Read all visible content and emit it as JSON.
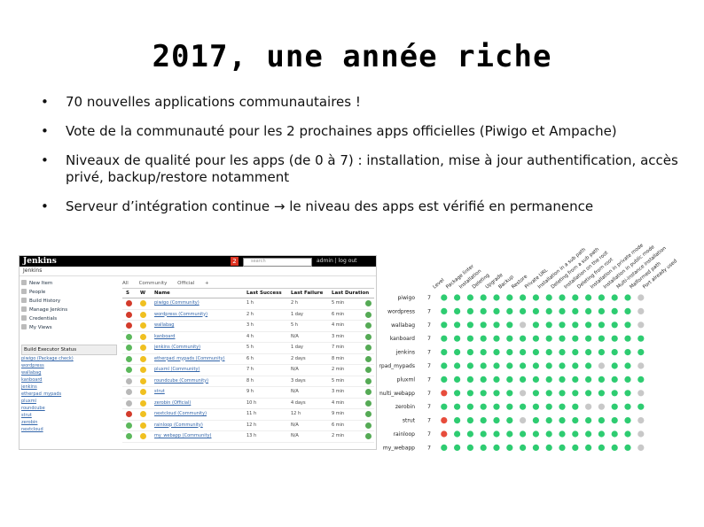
{
  "slide": {
    "title": "2017, une année riche",
    "bullets": [
      "70 nouvelles applications communautaires !",
      "Vote de la communauté pour les 2 prochaines apps officielles (Piwigo et Ampache)",
      "Niveaux de qualité pour les apps (de 0 à 7) : installation, mise à jour authentification, accès privé, backup/restore notamment",
      "Serveur d’intégration continue → le niveau des apps est vérifié en permanence"
    ],
    "bullet_symbol": "•"
  },
  "jenkins": {
    "logo": "Jenkins",
    "badge": "2",
    "search_placeholder": "search",
    "user_links": "admin | log out",
    "breadcrumb": "Jenkins",
    "sidebar_items": [
      "New Item",
      "People",
      "Build History",
      "Manage Jenkins",
      "Credentials",
      "My Views"
    ],
    "executor_header": "Build Executor Status",
    "executors": [
      "piwigo (Package check)",
      "wordpress",
      "wallabag",
      "kanboard",
      "jenkins",
      "etherpad_mypads",
      "pluxml",
      "roundcube",
      "strut",
      "zerobin",
      "nextcloud"
    ],
    "tabs": [
      "All",
      "Community",
      "Official",
      "+"
    ],
    "columns": [
      "S",
      "W",
      "Name",
      "Last Success",
      "Last Failure",
      "Last Duration"
    ],
    "rows": [
      {
        "status": "red",
        "name": "piwigo (Community)",
        "success": "1 h",
        "failure": "2 h",
        "duration": "5 min"
      },
      {
        "status": "red",
        "name": "wordpress (Community)",
        "success": "2 h",
        "failure": "1 day",
        "duration": "6 min"
      },
      {
        "status": "red",
        "name": "wallabag",
        "success": "3 h",
        "failure": "5 h",
        "duration": "4 min"
      },
      {
        "status": "green",
        "name": "kanboard",
        "success": "4 h",
        "failure": "N/A",
        "duration": "3 min"
      },
      {
        "status": "green",
        "name": "jenkins (Community)",
        "success": "5 h",
        "failure": "1 day",
        "duration": "7 min"
      },
      {
        "status": "green",
        "name": "etherpad_mypads (Community)",
        "success": "6 h",
        "failure": "2 days",
        "duration": "8 min"
      },
      {
        "status": "green",
        "name": "pluxml (Community)",
        "success": "7 h",
        "failure": "N/A",
        "duration": "2 min"
      },
      {
        "status": "gray",
        "name": "roundcube (Community)",
        "success": "8 h",
        "failure": "3 days",
        "duration": "5 min"
      },
      {
        "status": "gray",
        "name": "strut",
        "success": "9 h",
        "failure": "N/A",
        "duration": "3 min"
      },
      {
        "status": "gray",
        "name": "zerobin (Official)",
        "success": "10 h",
        "failure": "4 days",
        "duration": "4 min"
      },
      {
        "status": "red",
        "name": "nextcloud (Community)",
        "success": "11 h",
        "failure": "12 h",
        "duration": "9 min"
      },
      {
        "status": "green",
        "name": "rainloop (Community)",
        "success": "12 h",
        "failure": "N/A",
        "duration": "6 min"
      },
      {
        "status": "green",
        "name": "my_webapp (Community)",
        "success": "13 h",
        "failure": "N/A",
        "duration": "2 min"
      }
    ],
    "colors": {
      "red": "#d33b2b",
      "green": "#5cb85c",
      "gray": "#b8b8b8",
      "yellow": "#f0c020"
    }
  },
  "quality": {
    "headers": [
      "Level",
      "Package linter",
      "Installation",
      "Deleting",
      "Upgrade",
      "Backup",
      "Restore",
      "Private URL",
      "Installation in a sub path",
      "Deleting from a sub path",
      "Installation on the root",
      "Deleting from root",
      "Installation in private mode",
      "Installation in public mode",
      "Multi-instance installation",
      "Malformed path",
      "Port already used"
    ],
    "apps": [
      {
        "name": "piwigo",
        "level": "7",
        "dots": [
          "g",
          "g",
          "g",
          "g",
          "g",
          "g",
          "g",
          "g",
          "g",
          "g",
          "g",
          "g",
          "g",
          "g",
          "g",
          "x"
        ]
      },
      {
        "name": "wordpress",
        "level": "7",
        "dots": [
          "g",
          "g",
          "g",
          "g",
          "g",
          "g",
          "g",
          "g",
          "g",
          "g",
          "g",
          "g",
          "g",
          "g",
          "g",
          "x"
        ]
      },
      {
        "name": "wallabag",
        "level": "7",
        "dots": [
          "g",
          "g",
          "g",
          "g",
          "g",
          "g",
          "x",
          "g",
          "g",
          "g",
          "g",
          "g",
          "g",
          "g",
          "g",
          "x"
        ]
      },
      {
        "name": "kanboard",
        "level": "7",
        "dots": [
          "g",
          "g",
          "g",
          "g",
          "g",
          "g",
          "g",
          "g",
          "g",
          "g",
          "g",
          "g",
          "g",
          "g",
          "g",
          "g"
        ]
      },
      {
        "name": "jenkins",
        "level": "7",
        "dots": [
          "g",
          "g",
          "g",
          "g",
          "g",
          "g",
          "g",
          "g",
          "g",
          "g",
          "g",
          "g",
          "g",
          "g",
          "g",
          "g"
        ]
      },
      {
        "name": "etherpad_mypads",
        "level": "7",
        "dots": [
          "g",
          "g",
          "g",
          "g",
          "g",
          "g",
          "g",
          "g",
          "g",
          "g",
          "g",
          "g",
          "x",
          "g",
          "g",
          "x"
        ]
      },
      {
        "name": "pluxml",
        "level": "7",
        "dots": [
          "g",
          "g",
          "g",
          "g",
          "g",
          "g",
          "g",
          "g",
          "g",
          "g",
          "g",
          "g",
          "g",
          "g",
          "g",
          "g"
        ]
      },
      {
        "name": "multi_webapp",
        "level": "7",
        "dots": [
          "r",
          "g",
          "g",
          "g",
          "g",
          "g",
          "x",
          "g",
          "g",
          "g",
          "g",
          "g",
          "g",
          "g",
          "g",
          "x"
        ]
      },
      {
        "name": "zerobin",
        "level": "7",
        "dots": [
          "g",
          "g",
          "g",
          "g",
          "g",
          "g",
          "g",
          "g",
          "g",
          "g",
          "g",
          "x",
          "x",
          "g",
          "g",
          "g"
        ]
      },
      {
        "name": "strut",
        "level": "7",
        "dots": [
          "r",
          "g",
          "g",
          "g",
          "g",
          "g",
          "x",
          "g",
          "g",
          "g",
          "g",
          "g",
          "g",
          "g",
          "g",
          "x"
        ]
      },
      {
        "name": "rainloop",
        "level": "7",
        "dots": [
          "r",
          "g",
          "g",
          "g",
          "g",
          "g",
          "g",
          "g",
          "g",
          "g",
          "g",
          "g",
          "g",
          "g",
          "g",
          "x"
        ]
      },
      {
        "name": "my_webapp",
        "level": "7",
        "dots": [
          "g",
          "g",
          "g",
          "g",
          "g",
          "g",
          "g",
          "g",
          "g",
          "g",
          "g",
          "g",
          "g",
          "g",
          "g",
          "x"
        ]
      }
    ],
    "colors": {
      "g": "#2ecc71",
      "r": "#e74c3c",
      "x": "#c8c8c8"
    }
  }
}
